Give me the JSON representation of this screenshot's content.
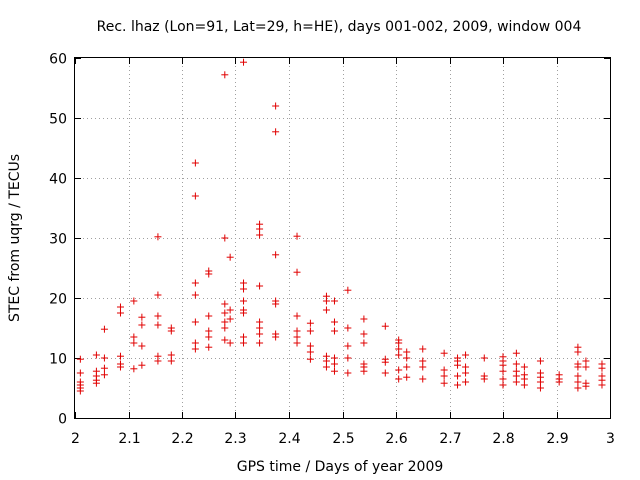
{
  "chart_data": {
    "type": "scatter",
    "title": "Rec. lhaz (Lon=91, Lat=29, h=HE), days 001-002, 2009, window 004",
    "xlabel": "GPS time / Days of year 2009",
    "ylabel": "STEC from uqrg / TECUs",
    "xlim": [
      2,
      3
    ],
    "ylim": [
      0,
      60
    ],
    "xticks": [
      2,
      2.1,
      2.2,
      2.3,
      2.4,
      2.5,
      2.6,
      2.7,
      2.8,
      2.9,
      3
    ],
    "xtick_labels": [
      "2",
      "2.1",
      "2.2",
      "2.3",
      "2.4",
      "2.5",
      "2.6",
      "2.7",
      "2.8",
      "2.9",
      "3"
    ],
    "yticks": [
      0,
      10,
      20,
      30,
      40,
      50,
      60
    ],
    "ytick_labels": [
      "0",
      "10",
      "20",
      "30",
      "40",
      "50",
      "60"
    ],
    "grid": true,
    "marker": "+",
    "color": "#e00000",
    "series": [
      {
        "name": "STEC",
        "points": [
          [
            2.01,
            4.5
          ],
          [
            2.01,
            5.0
          ],
          [
            2.01,
            5.5
          ],
          [
            2.01,
            6.0
          ],
          [
            2.01,
            7.5
          ],
          [
            2.01,
            9.8
          ],
          [
            2.04,
            5.8
          ],
          [
            2.04,
            6.3
          ],
          [
            2.04,
            7.0
          ],
          [
            2.04,
            7.8
          ],
          [
            2.04,
            10.5
          ],
          [
            2.055,
            7.2
          ],
          [
            2.055,
            8.3
          ],
          [
            2.055,
            10.0
          ],
          [
            2.055,
            14.8
          ],
          [
            2.085,
            8.5
          ],
          [
            2.085,
            9.0
          ],
          [
            2.085,
            10.3
          ],
          [
            2.085,
            17.5
          ],
          [
            2.085,
            18.5
          ],
          [
            2.11,
            8.2
          ],
          [
            2.11,
            12.5
          ],
          [
            2.11,
            13.5
          ],
          [
            2.11,
            19.5
          ],
          [
            2.125,
            8.8
          ],
          [
            2.125,
            12.0
          ],
          [
            2.125,
            15.5
          ],
          [
            2.125,
            16.8
          ],
          [
            2.155,
            9.5
          ],
          [
            2.155,
            10.3
          ],
          [
            2.155,
            15.5
          ],
          [
            2.155,
            17.0
          ],
          [
            2.155,
            20.5
          ],
          [
            2.155,
            30.2
          ],
          [
            2.18,
            9.5
          ],
          [
            2.18,
            10.5
          ],
          [
            2.18,
            14.5
          ],
          [
            2.18,
            15.0
          ],
          [
            2.225,
            11.5
          ],
          [
            2.225,
            12.5
          ],
          [
            2.225,
            16.0
          ],
          [
            2.225,
            20.5
          ],
          [
            2.225,
            22.5
          ],
          [
            2.225,
            37.0
          ],
          [
            2.225,
            42.5
          ],
          [
            2.25,
            11.8
          ],
          [
            2.25,
            13.5
          ],
          [
            2.25,
            14.5
          ],
          [
            2.25,
            17.0
          ],
          [
            2.25,
            24.0
          ],
          [
            2.25,
            24.5
          ],
          [
            2.28,
            13.0
          ],
          [
            2.28,
            15.0
          ],
          [
            2.28,
            16.0
          ],
          [
            2.28,
            17.5
          ],
          [
            2.28,
            19.0
          ],
          [
            2.28,
            30.0
          ],
          [
            2.28,
            57.2
          ],
          [
            2.29,
            12.5
          ],
          [
            2.29,
            16.5
          ],
          [
            2.29,
            18.0
          ],
          [
            2.29,
            26.8
          ],
          [
            2.315,
            12.5
          ],
          [
            2.315,
            13.5
          ],
          [
            2.315,
            17.5
          ],
          [
            2.315,
            18.0
          ],
          [
            2.315,
            19.5
          ],
          [
            2.315,
            21.5
          ],
          [
            2.315,
            22.5
          ],
          [
            2.315,
            59.3
          ],
          [
            2.345,
            12.5
          ],
          [
            2.345,
            14.0
          ],
          [
            2.345,
            15.0
          ],
          [
            2.345,
            16.0
          ],
          [
            2.345,
            22.0
          ],
          [
            2.345,
            30.5
          ],
          [
            2.345,
            31.5
          ],
          [
            2.345,
            32.3
          ],
          [
            2.375,
            13.5
          ],
          [
            2.375,
            14.0
          ],
          [
            2.375,
            19.0
          ],
          [
            2.375,
            19.5
          ],
          [
            2.375,
            27.2
          ],
          [
            2.375,
            47.7
          ],
          [
            2.375,
            52.0
          ],
          [
            2.415,
            12.5
          ],
          [
            2.415,
            13.5
          ],
          [
            2.415,
            14.5
          ],
          [
            2.415,
            17.0
          ],
          [
            2.415,
            24.3
          ],
          [
            2.415,
            30.3
          ],
          [
            2.44,
            9.8
          ],
          [
            2.44,
            11.0
          ],
          [
            2.44,
            12.0
          ],
          [
            2.44,
            14.5
          ],
          [
            2.44,
            15.8
          ],
          [
            2.47,
            8.5
          ],
          [
            2.47,
            9.5
          ],
          [
            2.47,
            10.3
          ],
          [
            2.47,
            18.0
          ],
          [
            2.47,
            19.5
          ],
          [
            2.47,
            20.3
          ],
          [
            2.485,
            7.8
          ],
          [
            2.485,
            9.0
          ],
          [
            2.485,
            10.0
          ],
          [
            2.485,
            14.5
          ],
          [
            2.485,
            16.0
          ],
          [
            2.485,
            19.5
          ],
          [
            2.51,
            7.5
          ],
          [
            2.51,
            10.0
          ],
          [
            2.51,
            12.0
          ],
          [
            2.51,
            15.0
          ],
          [
            2.51,
            21.3
          ],
          [
            2.54,
            7.8
          ],
          [
            2.54,
            8.5
          ],
          [
            2.54,
            9.0
          ],
          [
            2.54,
            12.5
          ],
          [
            2.54,
            14.0
          ],
          [
            2.54,
            16.5
          ],
          [
            2.58,
            7.5
          ],
          [
            2.58,
            9.3
          ],
          [
            2.58,
            9.8
          ],
          [
            2.58,
            15.3
          ],
          [
            2.605,
            6.5
          ],
          [
            2.605,
            8.0
          ],
          [
            2.605,
            10.5
          ],
          [
            2.605,
            11.5
          ],
          [
            2.605,
            12.5
          ],
          [
            2.605,
            13.0
          ],
          [
            2.62,
            6.8
          ],
          [
            2.62,
            8.5
          ],
          [
            2.62,
            10.0
          ],
          [
            2.62,
            11.0
          ],
          [
            2.65,
            6.5
          ],
          [
            2.65,
            8.5
          ],
          [
            2.65,
            9.5
          ],
          [
            2.65,
            11.5
          ],
          [
            2.69,
            5.8
          ],
          [
            2.69,
            7.0
          ],
          [
            2.69,
            8.0
          ],
          [
            2.69,
            10.8
          ],
          [
            2.715,
            5.5
          ],
          [
            2.715,
            7.0
          ],
          [
            2.715,
            8.8
          ],
          [
            2.715,
            9.5
          ],
          [
            2.715,
            10.0
          ],
          [
            2.73,
            6.0
          ],
          [
            2.73,
            7.5
          ],
          [
            2.73,
            8.5
          ],
          [
            2.73,
            10.5
          ],
          [
            2.765,
            6.5
          ],
          [
            2.765,
            7.0
          ],
          [
            2.765,
            10.0
          ],
          [
            2.8,
            5.5
          ],
          [
            2.8,
            6.5
          ],
          [
            2.8,
            7.8
          ],
          [
            2.8,
            8.8
          ],
          [
            2.8,
            9.5
          ],
          [
            2.8,
            10.2
          ],
          [
            2.825,
            6.0
          ],
          [
            2.825,
            7.0
          ],
          [
            2.825,
            7.8
          ],
          [
            2.825,
            9.0
          ],
          [
            2.825,
            10.8
          ],
          [
            2.84,
            5.5
          ],
          [
            2.84,
            6.5
          ],
          [
            2.84,
            7.2
          ],
          [
            2.84,
            8.5
          ],
          [
            2.87,
            5.0
          ],
          [
            2.87,
            6.0
          ],
          [
            2.87,
            6.8
          ],
          [
            2.87,
            7.5
          ],
          [
            2.87,
            9.5
          ],
          [
            2.905,
            6.0
          ],
          [
            2.905,
            6.5
          ],
          [
            2.905,
            7.2
          ],
          [
            2.94,
            5.0
          ],
          [
            2.94,
            6.0
          ],
          [
            2.94,
            7.0
          ],
          [
            2.94,
            8.5
          ],
          [
            2.94,
            9.0
          ],
          [
            2.94,
            11.0
          ],
          [
            2.94,
            11.8
          ],
          [
            2.955,
            5.3
          ],
          [
            2.955,
            5.8
          ],
          [
            2.955,
            8.5
          ],
          [
            2.955,
            9.5
          ],
          [
            2.985,
            5.5
          ],
          [
            2.985,
            6.3
          ],
          [
            2.985,
            7.0
          ],
          [
            2.985,
            8.3
          ],
          [
            2.985,
            9.0
          ]
        ]
      }
    ]
  }
}
